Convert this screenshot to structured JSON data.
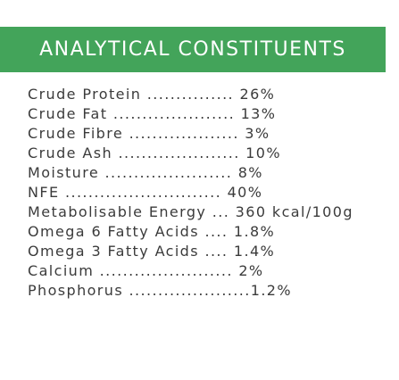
{
  "header": {
    "title": "ANALYTICAL CONSTITUENTS"
  },
  "constituents": [
    "Crude Protein ............... 26%",
    "Crude Fat ..................... 13%",
    "Crude Fibre ................... 3%",
    "Crude Ash ..................... 10%",
    "Moisture ...................... 8%",
    "NFE ........................... 40%",
    "Metabolisable Energy ... 360 kcal/100g",
    "Omega 6 Fatty Acids .... 1.8%",
    "Omega 3 Fatty Acids .... 1.4%",
    "Calcium ....................... 2%",
    "Phosphorus .....................1.2%"
  ],
  "colors": {
    "header_background": "#43a45a",
    "header_text": "#ffffff",
    "body_text": "#3b3b3b"
  }
}
